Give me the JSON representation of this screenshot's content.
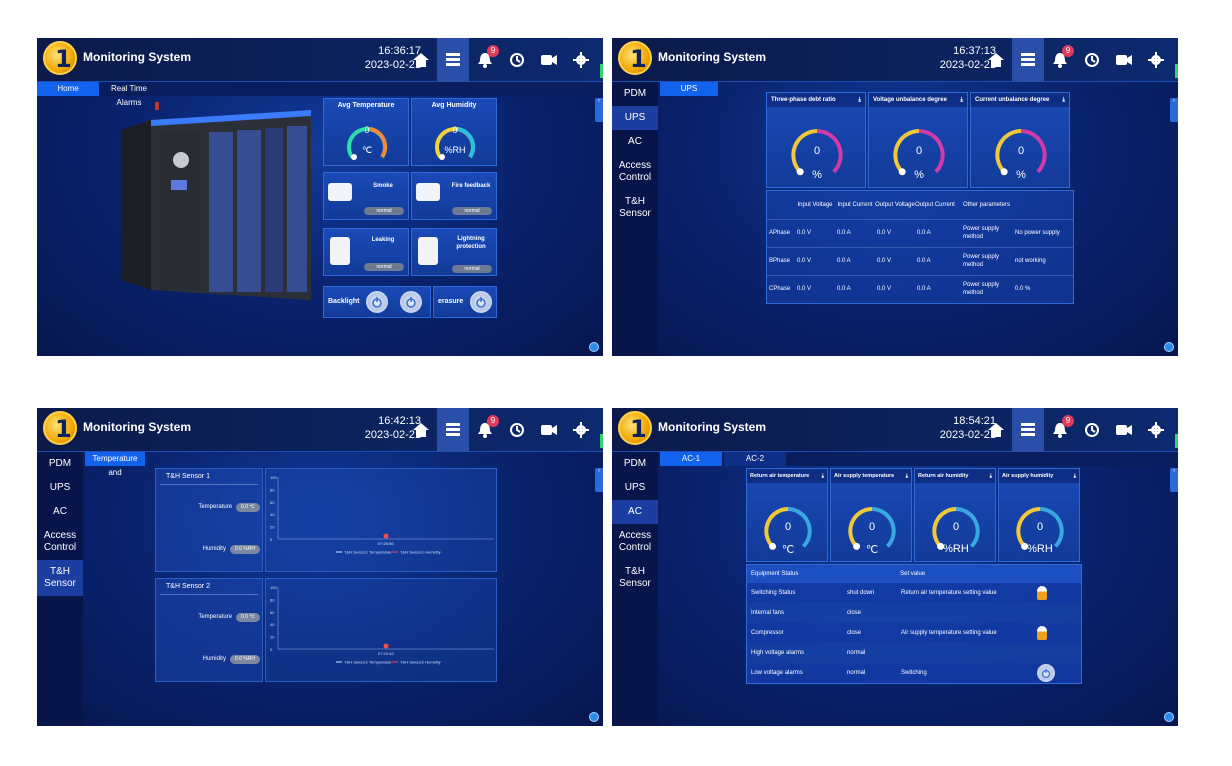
{
  "screens": {
    "s1": {
      "title": "Monitoring System",
      "time": "16:36:17",
      "date": "2023-02-21",
      "badge": "9",
      "tabs": [
        "Home",
        "Real Time Alarms"
      ],
      "avg_temp": {
        "title": "Avg Temperature",
        "value": "0",
        "unit": "℃"
      },
      "avg_humidity": {
        "title": "Avg Humidity",
        "value": "0",
        "unit": "%RH"
      },
      "smoke": {
        "title": "Smoke",
        "status": "normal"
      },
      "fire": {
        "title": "Fire feedback",
        "status": "normal"
      },
      "leaking": {
        "title": "Leaking",
        "status": "normal"
      },
      "lightning": {
        "title": "Lightning protection",
        "status": "normal"
      },
      "backlight": "Backlight",
      "erasure": "erasure"
    },
    "s2": {
      "title": "Monitoring System",
      "time": "16:37:13",
      "date": "2023-02-21",
      "badge": "9",
      "sidebar": [
        "PDM",
        "UPS",
        "AC",
        "Access Control",
        "T&H Sensor"
      ],
      "tab": "UPS",
      "gauges": [
        {
          "title": "Three-phase debt ratio",
          "value": "0",
          "unit": "%"
        },
        {
          "title": "Voltage unbalance degree",
          "value": "0",
          "unit": "%"
        },
        {
          "title": "Current unbalance degree",
          "value": "0",
          "unit": "%"
        }
      ],
      "headers": [
        "Input Voltage",
        "Input Current",
        "Output Voltage",
        "Output Current",
        "Other parameters"
      ],
      "rows": [
        {
          "phase": "APhase",
          "iv": "0.0 V",
          "ic": "0.0 A",
          "ov": "0.0 V",
          "oc": "0.0 A",
          "param": "Power supply method",
          "pval": "No power supply"
        },
        {
          "phase": "BPhase",
          "iv": "0.0 V",
          "ic": "0.0 A",
          "ov": "0.0 V",
          "oc": "0.0 A",
          "param": "Power supply method",
          "pval": "not working"
        },
        {
          "phase": "CPhase",
          "iv": "0.0 V",
          "ic": "0.0 A",
          "ov": "0.0 V",
          "oc": "0.0 A",
          "param": "Power supply method",
          "pval": "0.0 %"
        }
      ]
    },
    "s3": {
      "title": "Monitoring System",
      "time": "16:42:13",
      "date": "2023-02-21",
      "badge": "9",
      "sidebar": [
        "PDM",
        "UPS",
        "AC",
        "Access Control",
        "T&H Sensor"
      ],
      "tab": "Temperature and",
      "sensors": [
        {
          "name": "T&H Sensor 1",
          "temp_label": "Temperature",
          "temp": "0.0 ℃",
          "hum_label": "Humidity",
          "hum": "0.0 %RH",
          "point_time": "07:25:56",
          "legend": [
            "T&H Sensor1 Temperature",
            "T&H Sensor1 Humidity"
          ]
        },
        {
          "name": "T&H Sensor 2",
          "temp_label": "Temperature",
          "temp": "0.0 ℃",
          "hum_label": "Humidity",
          "hum": "0.0 %RH",
          "point_time": "07:22:42",
          "legend": [
            "T&H Sensor1 Temperature",
            "T&H Sensor2 Humidity"
          ]
        }
      ],
      "yticks": [
        "100",
        "80",
        "60",
        "40",
        "20",
        "0"
      ]
    },
    "s4": {
      "title": "Monitoring System",
      "time": "18:54:21",
      "date": "2023-02-21",
      "badge": "9",
      "sidebar": [
        "PDM",
        "UPS",
        "AC",
        "Access Control",
        "T&H Sensor"
      ],
      "tabs": [
        "AC-1",
        "AC-2"
      ],
      "gauges": [
        {
          "title": "Return air temperature",
          "value": "0",
          "unit": "℃"
        },
        {
          "title": "Air supply temperature",
          "value": "0",
          "unit": "℃"
        },
        {
          "title": "Return air humidity",
          "value": "0",
          "unit": "%RH"
        },
        {
          "title": "Air supply humidity",
          "value": "0",
          "unit": "%RH"
        }
      ],
      "status_header": "Equipment Status",
      "set_header": "Set value",
      "rows": [
        {
          "name": "Switching Status",
          "value": "shut down",
          "set": "Return air temperature setting value"
        },
        {
          "name": "Internal fans",
          "value": "close",
          "set": ""
        },
        {
          "name": "Compressor",
          "value": "close",
          "set": "Air supply temperature setting value"
        },
        {
          "name": "High voltage alarms",
          "value": "normal",
          "set": ""
        },
        {
          "name": "Low voltage alarms",
          "value": "normal",
          "set": "Switching"
        }
      ]
    }
  }
}
